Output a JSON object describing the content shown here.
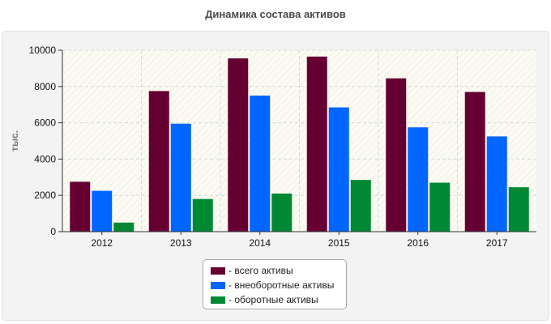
{
  "chart_data": {
    "type": "bar",
    "title": "Динамика состава активов",
    "ylabel": "тыс.",
    "xlabel": "",
    "categories": [
      "2012",
      "2013",
      "2014",
      "2015",
      "2016",
      "2017"
    ],
    "ylim": [
      0,
      10000
    ],
    "yticks": [
      0,
      2000,
      4000,
      6000,
      8000,
      10000
    ],
    "grid": true,
    "legend_position": "bottom",
    "series": [
      {
        "name": "- всего активы",
        "color": "#660033",
        "values": [
          2750,
          7750,
          9550,
          9650,
          8450,
          7700
        ]
      },
      {
        "name": "- внеоборотные активы",
        "color": "#0066ff",
        "values": [
          2250,
          5950,
          7500,
          6850,
          5750,
          5250
        ]
      },
      {
        "name": "- оборотные активы",
        "color": "#008833",
        "values": [
          500,
          1800,
          2100,
          2850,
          2700,
          2450
        ]
      }
    ]
  }
}
